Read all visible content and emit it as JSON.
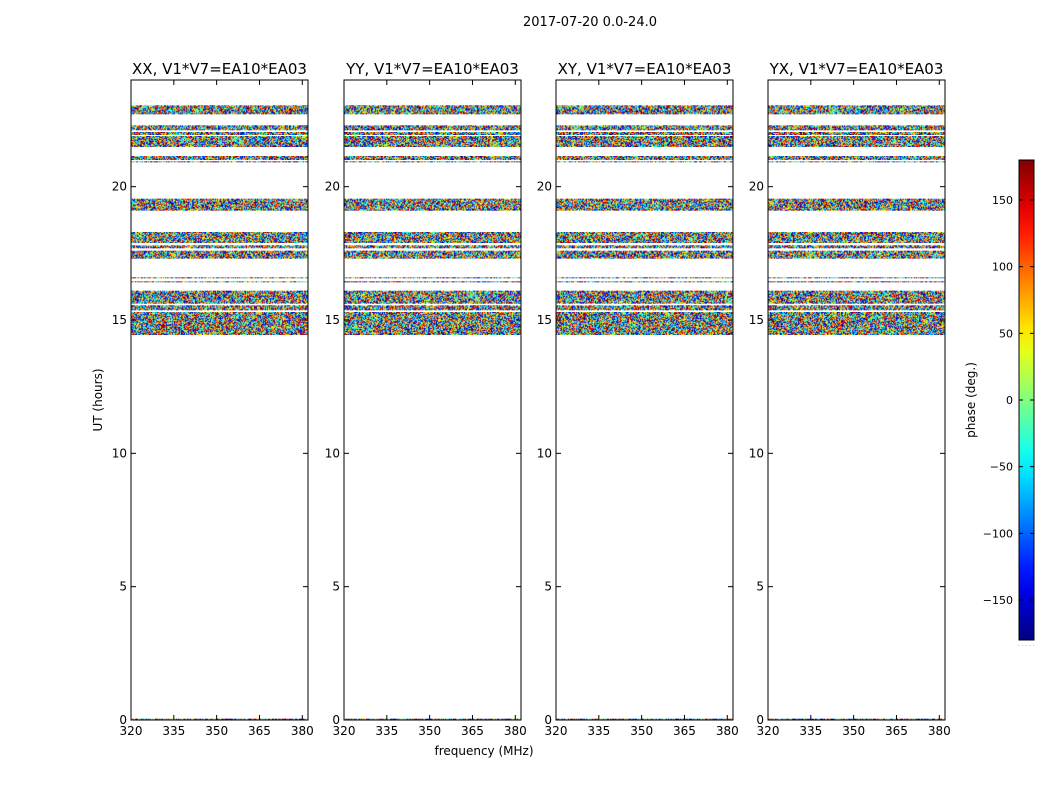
{
  "figure": {
    "suptitle": "2017-07-20 0.0-24.0"
  },
  "chart_data": {
    "type": "heatmap",
    "title": "2017-07-20 0.0-24.0",
    "panels": [
      {
        "title": "XX, V1*V7=EA10*EA03"
      },
      {
        "title": "YY, V1*V7=EA10*EA03"
      },
      {
        "title": "XY, V1*V7=EA10*EA03"
      },
      {
        "title": "YX, V1*V7=EA10*EA03"
      }
    ],
    "xlabel": "frequency (MHz)",
    "ylabel": "UT (hours)",
    "xlim": [
      320,
      382
    ],
    "ylim": [
      0,
      24
    ],
    "xticks": [
      320,
      335,
      350,
      365,
      380
    ],
    "yticks": [
      0,
      5,
      10,
      15,
      20
    ],
    "colorbar": {
      "label": "phase (deg.)",
      "range": [
        -180,
        180
      ],
      "ticks": [
        150,
        100,
        50,
        0,
        -50,
        -100,
        -150
      ],
      "tick_labels": [
        "150",
        "100",
        "50",
        "0",
        "−50",
        "−100",
        "−150"
      ],
      "colormap": "jet",
      "extra_label": "· · · · ·"
    },
    "data_bands_ut_hours": [
      {
        "start": 14.45,
        "end": 15.3
      },
      {
        "start": 15.35,
        "end": 15.55
      },
      {
        "start": 15.6,
        "end": 16.1
      },
      {
        "start": 16.4,
        "end": 16.45
      },
      {
        "start": 16.55,
        "end": 16.6
      },
      {
        "start": 17.3,
        "end": 17.6
      },
      {
        "start": 17.7,
        "end": 17.8
      },
      {
        "start": 17.9,
        "end": 18.3
      },
      {
        "start": 19.1,
        "end": 19.55
      },
      {
        "start": 20.9,
        "end": 20.95
      },
      {
        "start": 21.0,
        "end": 21.15
      },
      {
        "start": 21.5,
        "end": 21.9
      },
      {
        "start": 21.95,
        "end": 22.05
      },
      {
        "start": 22.1,
        "end": 22.3
      },
      {
        "start": 22.7,
        "end": 23.05
      },
      {
        "start": 0.0,
        "end": 0.05
      }
    ],
    "phase_values": "random-like noise spanning -180 to 180 deg"
  }
}
